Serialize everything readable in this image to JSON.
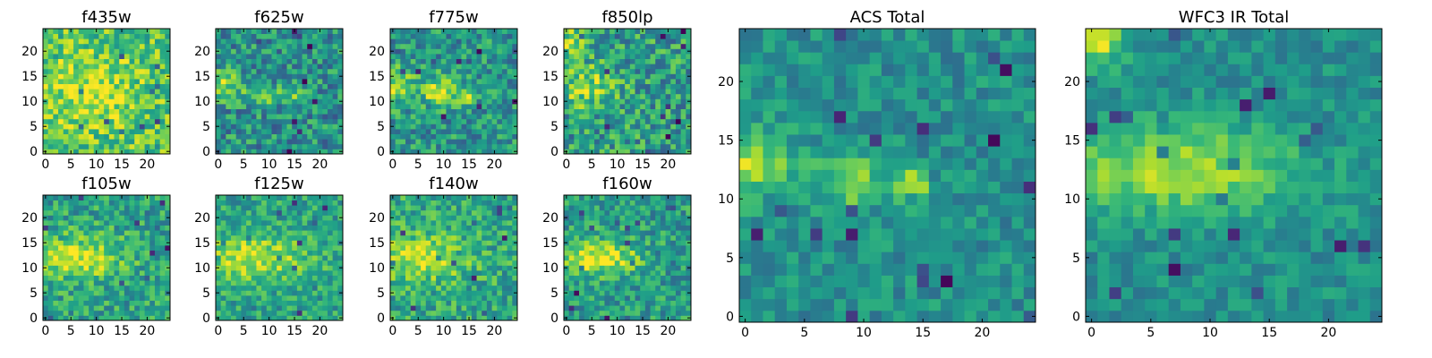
{
  "chart_data": [
    {
      "type": "heatmap",
      "title": "f435w",
      "colormap": "viridis",
      "xlim": [
        0,
        24
      ],
      "ylim": [
        0,
        24
      ],
      "xticks": [
        0,
        5,
        10,
        15,
        20
      ],
      "yticks": [
        0,
        5,
        10,
        15,
        20
      ],
      "grid": false,
      "hotspots": [
        {
          "cx": 8,
          "cy": 12,
          "sx": 7,
          "sy": 5,
          "a": 0.2
        }
      ],
      "base": 0.72,
      "noise": 0.22
    },
    {
      "type": "heatmap",
      "title": "f625w",
      "colormap": "viridis",
      "xlim": [
        0,
        24
      ],
      "ylim": [
        0,
        24
      ],
      "xticks": [
        0,
        5,
        10,
        15,
        20
      ],
      "yticks": [
        0,
        5,
        10,
        15,
        20
      ],
      "grid": false,
      "hotspots": [
        {
          "cx": 1,
          "cy": 13,
          "sx": 3,
          "sy": 2,
          "a": 0.35
        },
        {
          "cx": 9,
          "cy": 11,
          "sx": 1.5,
          "sy": 1.3,
          "a": 0.45
        },
        {
          "cx": 14,
          "cy": 12,
          "sx": 1.5,
          "sy": 1.3,
          "a": 0.35
        }
      ],
      "base": 0.5,
      "noise": 0.24
    },
    {
      "type": "heatmap",
      "title": "f775w",
      "colormap": "viridis",
      "xlim": [
        0,
        24
      ],
      "ylim": [
        0,
        24
      ],
      "xticks": [
        0,
        5,
        10,
        15,
        20
      ],
      "yticks": [
        0,
        5,
        10,
        15,
        20
      ],
      "grid": false,
      "hotspots": [
        {
          "cx": 1,
          "cy": 13,
          "sx": 3,
          "sy": 2.5,
          "a": 0.35
        },
        {
          "cx": 9,
          "cy": 12,
          "sx": 2,
          "sy": 2,
          "a": 0.4
        },
        {
          "cx": 14,
          "cy": 11,
          "sx": 1.5,
          "sy": 1.5,
          "a": 0.35
        }
      ],
      "base": 0.52,
      "noise": 0.22
    },
    {
      "type": "heatmap",
      "title": "f850lp",
      "colormap": "viridis",
      "xlim": [
        0,
        24
      ],
      "ylim": [
        0,
        24
      ],
      "xticks": [
        0,
        5,
        10,
        15,
        20
      ],
      "yticks": [
        0,
        5,
        10,
        15,
        20
      ],
      "grid": false,
      "hotspots": [
        {
          "cx": 1,
          "cy": 22,
          "sx": 2,
          "sy": 2,
          "a": 0.3
        },
        {
          "cx": 4,
          "cy": 13,
          "sx": 4,
          "sy": 3,
          "a": 0.3
        }
      ],
      "base": 0.55,
      "noise": 0.25
    },
    {
      "type": "heatmap",
      "title": "f105w",
      "colormap": "viridis",
      "xlim": [
        0,
        24
      ],
      "ylim": [
        0,
        24
      ],
      "xticks": [
        0,
        5,
        10,
        15,
        20
      ],
      "yticks": [
        0,
        5,
        10,
        15,
        20
      ],
      "grid": false,
      "hotspots": [
        {
          "cx": 7,
          "cy": 12,
          "sx": 6,
          "sy": 3,
          "a": 0.35
        }
      ],
      "base": 0.58,
      "noise": 0.2
    },
    {
      "type": "heatmap",
      "title": "f125w",
      "colormap": "viridis",
      "xlim": [
        0,
        24
      ],
      "ylim": [
        0,
        24
      ],
      "xticks": [
        0,
        5,
        10,
        15,
        20
      ],
      "yticks": [
        0,
        5,
        10,
        15,
        20
      ],
      "grid": false,
      "hotspots": [
        {
          "cx": 6,
          "cy": 12,
          "sx": 8,
          "sy": 3,
          "a": 0.35
        }
      ],
      "base": 0.58,
      "noise": 0.18
    },
    {
      "type": "heatmap",
      "title": "f140w",
      "colormap": "viridis",
      "xlim": [
        0,
        24
      ],
      "ylim": [
        0,
        24
      ],
      "xticks": [
        0,
        5,
        10,
        15,
        20
      ],
      "yticks": [
        0,
        5,
        10,
        15,
        20
      ],
      "grid": false,
      "hotspots": [
        {
          "cx": 6,
          "cy": 12,
          "sx": 6,
          "sy": 3,
          "a": 0.35
        }
      ],
      "base": 0.6,
      "noise": 0.2
    },
    {
      "type": "heatmap",
      "title": "f160w",
      "colormap": "viridis",
      "xlim": [
        0,
        24
      ],
      "ylim": [
        0,
        24
      ],
      "xticks": [
        0,
        5,
        10,
        15,
        20
      ],
      "yticks": [
        0,
        5,
        10,
        15,
        20
      ],
      "grid": false,
      "hotspots": [
        {
          "cx": 6,
          "cy": 12,
          "sx": 6,
          "sy": 2.5,
          "a": 0.4
        }
      ],
      "base": 0.55,
      "noise": 0.2
    },
    {
      "type": "heatmap",
      "title": "ACS Total",
      "colormap": "viridis",
      "xlim": [
        0,
        24
      ],
      "ylim": [
        0,
        24
      ],
      "xticks": [
        0,
        5,
        10,
        15,
        20
      ],
      "yticks": [
        0,
        5,
        10,
        15,
        20
      ],
      "grid": false,
      "hotspots": [
        {
          "cx": 0,
          "cy": 13,
          "sx": 3,
          "sy": 2,
          "a": 0.35
        },
        {
          "cx": 9,
          "cy": 11.5,
          "sx": 2,
          "sy": 1.5,
          "a": 0.35
        },
        {
          "cx": 14,
          "cy": 11.5,
          "sx": 1,
          "sy": 1,
          "a": 0.45
        }
      ],
      "base": 0.5,
      "noise": 0.14
    },
    {
      "type": "heatmap",
      "title": "WFC3 IR Total",
      "colormap": "viridis",
      "xlim": [
        0,
        24
      ],
      "ylim": [
        0,
        24
      ],
      "xticks": [
        0,
        5,
        10,
        15,
        20
      ],
      "yticks": [
        0,
        5,
        10,
        15,
        20
      ],
      "grid": false,
      "hotspots": [
        {
          "cx": 7,
          "cy": 12.5,
          "sx": 7,
          "sy": 2.5,
          "a": 0.38
        },
        {
          "cx": 0.5,
          "cy": 23.5,
          "sx": 1.5,
          "sy": 1.5,
          "a": 0.45
        }
      ],
      "base": 0.5,
      "noise": 0.12
    }
  ]
}
